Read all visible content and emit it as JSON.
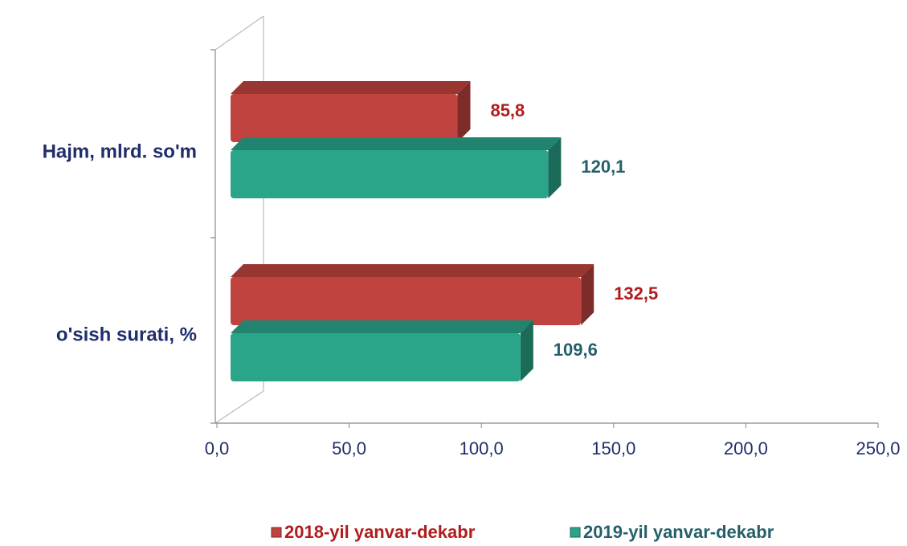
{
  "chart_data": {
    "type": "bar",
    "orientation": "horizontal",
    "categories": [
      "Hajm, mlrd. so'm",
      "o'sish surati, %"
    ],
    "series": [
      {
        "name": "2018-yil yanvar-dekabr",
        "color": "#c0433f",
        "values": [
          85.8,
          132.5
        ],
        "value_labels": [
          "85,8",
          "132,5"
        ]
      },
      {
        "name": "2019-yil yanvar-dekabr",
        "color": "#2aa58a",
        "values": [
          120.1,
          109.6
        ],
        "value_labels": [
          "120,1",
          "109,6"
        ]
      }
    ],
    "xlim": [
      0,
      250
    ],
    "xticks": [
      {
        "value": 0,
        "label": "0,0"
      },
      {
        "value": 50,
        "label": "50,0"
      },
      {
        "value": 100,
        "label": "100,0"
      },
      {
        "value": 150,
        "label": "150,0"
      },
      {
        "value": 200,
        "label": "200,0"
      },
      {
        "value": 250,
        "label": "250,0"
      }
    ],
    "legend": "bottom"
  }
}
